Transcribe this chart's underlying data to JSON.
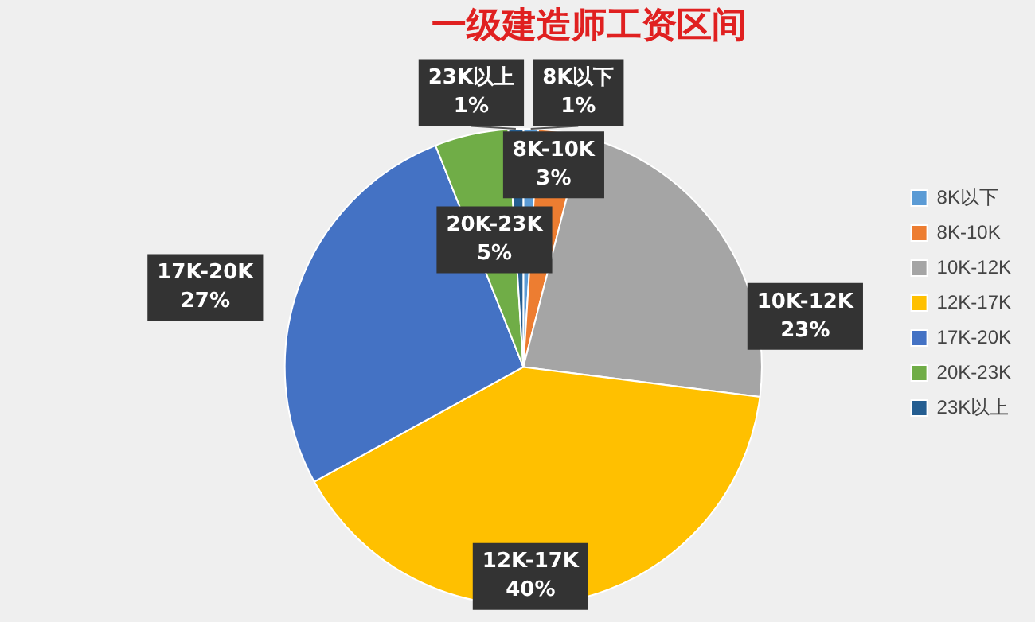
{
  "chart_data": {
    "type": "pie",
    "title": "一级建造师工资区间",
    "categories": [
      "8K以下",
      "8K-10K",
      "10K-12K",
      "12K-17K",
      "17K-20K",
      "20K-23K",
      "23K以上"
    ],
    "values": [
      1,
      3,
      23,
      40,
      27,
      5,
      1
    ],
    "value_labels": [
      "1%",
      "3%",
      "23%",
      "40%",
      "27%",
      "5%",
      "1%"
    ],
    "colors": [
      "#5b9bd5",
      "#ed7d31",
      "#a5a5a5",
      "#ffc000",
      "#4472c4",
      "#70ad47",
      "#255e91"
    ],
    "legend": "right"
  }
}
